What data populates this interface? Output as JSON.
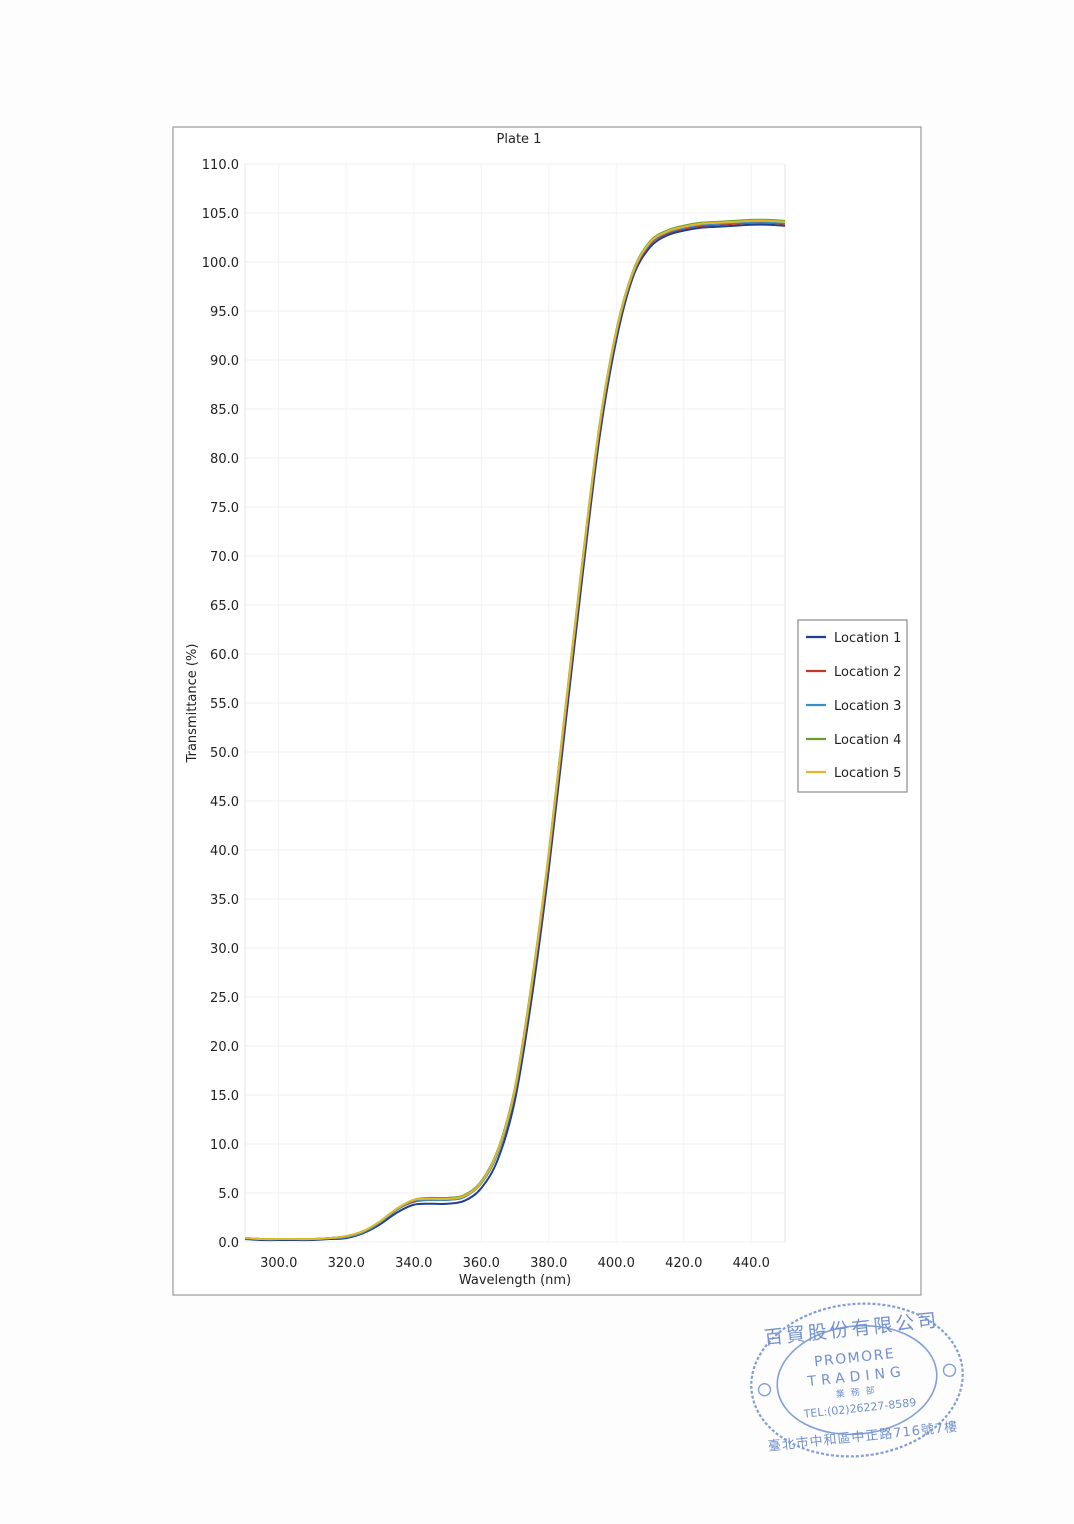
{
  "chart_data": {
    "type": "line",
    "title": "Plate 1",
    "xlabel": "Wavelength (nm)",
    "ylabel": "Transmittance (%)",
    "xlim": [
      290,
      450
    ],
    "ylim": [
      0,
      110
    ],
    "x_ticks": [
      "300.0",
      "320.0",
      "340.0",
      "360.0",
      "380.0",
      "400.0",
      "420.0",
      "440.0"
    ],
    "y_ticks": [
      "0.0",
      "5.0",
      "10.0",
      "15.0",
      "20.0",
      "25.0",
      "30.0",
      "35.0",
      "40.0",
      "45.0",
      "50.0",
      "55.0",
      "60.0",
      "65.0",
      "70.0",
      "75.0",
      "80.0",
      "85.0",
      "90.0",
      "95.0",
      "100.0",
      "105.0",
      "110.0"
    ],
    "grid": true,
    "legend_position": "right",
    "x": [
      290,
      295,
      300,
      305,
      310,
      315,
      320,
      325,
      330,
      335,
      340,
      345,
      350,
      355,
      360,
      365,
      370,
      375,
      380,
      385,
      390,
      395,
      400,
      405,
      410,
      415,
      420,
      425,
      430,
      435,
      440,
      445,
      450
    ],
    "series": [
      {
        "name": "Location 1",
        "color": "#1f3f8f",
        "values": [
          0.3,
          0.2,
          0.2,
          0.2,
          0.2,
          0.3,
          0.4,
          0.9,
          1.8,
          3.0,
          3.8,
          3.9,
          3.9,
          4.2,
          5.5,
          8.5,
          14.5,
          25.0,
          38.0,
          53.0,
          68.0,
          82.0,
          92.0,
          98.5,
          101.5,
          102.7,
          103.2,
          103.5,
          103.6,
          103.7,
          103.8,
          103.8,
          103.7
        ]
      },
      {
        "name": "Location 2",
        "color": "#c0392b",
        "values": [
          0.4,
          0.3,
          0.3,
          0.3,
          0.3,
          0.4,
          0.5,
          1.0,
          2.0,
          3.3,
          4.1,
          4.3,
          4.3,
          4.6,
          6.0,
          9.2,
          15.3,
          26.0,
          39.0,
          54.0,
          69.0,
          82.8,
          92.6,
          98.8,
          101.8,
          102.9,
          103.4,
          103.7,
          103.8,
          103.9,
          104.0,
          104.0,
          103.9
        ]
      },
      {
        "name": "Location 3",
        "color": "#3b8fc7",
        "values": [
          0.4,
          0.3,
          0.3,
          0.3,
          0.3,
          0.4,
          0.5,
          1.0,
          2.0,
          3.3,
          4.2,
          4.3,
          4.3,
          4.6,
          6.0,
          9.2,
          15.4,
          26.2,
          39.3,
          54.3,
          69.2,
          83.0,
          92.7,
          98.9,
          101.9,
          103.0,
          103.5,
          103.8,
          103.9,
          104.0,
          104.1,
          104.1,
          104.0
        ]
      },
      {
        "name": "Location 4",
        "color": "#6a9e2e",
        "values": [
          0.4,
          0.3,
          0.3,
          0.3,
          0.3,
          0.4,
          0.6,
          1.1,
          2.1,
          3.4,
          4.3,
          4.5,
          4.5,
          4.8,
          6.2,
          9.5,
          15.8,
          26.6,
          39.7,
          54.7,
          69.6,
          83.3,
          93.0,
          99.1,
          102.1,
          103.2,
          103.7,
          104.0,
          104.1,
          104.2,
          104.3,
          104.3,
          104.2
        ]
      },
      {
        "name": "Location 5",
        "color": "#e0b92a",
        "values": [
          0.4,
          0.3,
          0.3,
          0.3,
          0.3,
          0.4,
          0.6,
          1.1,
          2.1,
          3.4,
          4.3,
          4.4,
          4.4,
          4.7,
          6.1,
          9.4,
          15.6,
          26.4,
          39.5,
          54.5,
          69.4,
          83.2,
          92.9,
          99.0,
          102.0,
          103.1,
          103.6,
          103.9,
          104.0,
          104.1,
          104.2,
          104.2,
          104.1
        ]
      }
    ]
  },
  "stamp": {
    "top_text": "百貿股份有限公司",
    "name_line1": "PROMORE",
    "name_line2": "TRADING",
    "dept": "業務部",
    "tel": "TEL:(02)26227-8589",
    "address": "臺北市中和區中正路716號7樓"
  }
}
